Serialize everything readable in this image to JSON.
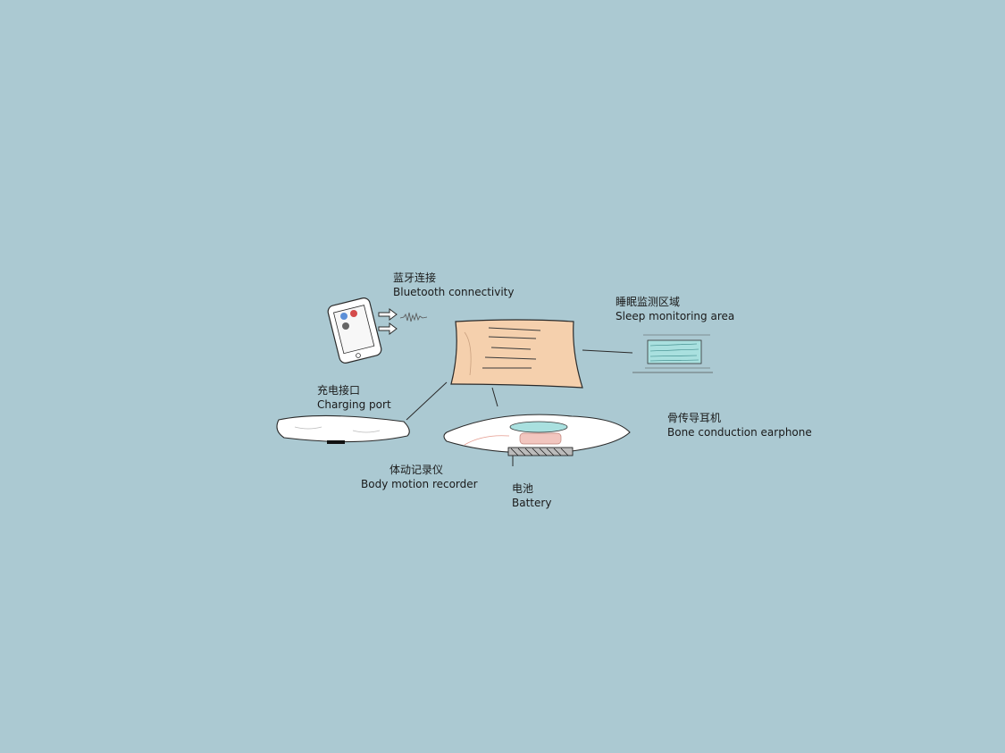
{
  "diagram": {
    "background": "#abc9d2",
    "labels": {
      "bluetooth": {
        "zh": "蓝牙连接",
        "en": "Bluetooth connectivity"
      },
      "sleep_area": {
        "zh": "睡眠监测区域",
        "en": "Sleep monitoring area"
      },
      "charging": {
        "zh": "充电接口",
        "en": "Charging port"
      },
      "earphone": {
        "zh": "骨传导耳机",
        "en": "Bone conduction earphone"
      },
      "motion": {
        "zh": "体动记录仪",
        "en": "Body motion recorder"
      },
      "battery": {
        "zh": "电池",
        "en": "Battery"
      }
    },
    "colors": {
      "pillow_fill": "#f5d0ad",
      "sensor_fill": "#a9e0df",
      "earphone_fill": "#f2c6bf",
      "line": "#2a2a2a"
    }
  }
}
